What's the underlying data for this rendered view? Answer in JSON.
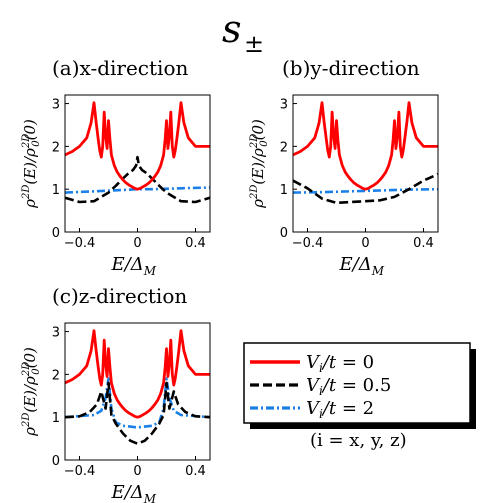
{
  "figure": {
    "title": "s±",
    "title_main": "s",
    "title_sub": "±"
  },
  "legend": {
    "entries": [
      {
        "label": "V_i/t = 0",
        "text": "Vi/t = 0",
        "color": "#ff0000",
        "dash": "solid"
      },
      {
        "label": "V_i/t = 0.5",
        "text": "Vi/t = 0.5",
        "color": "#000000",
        "dash": "dashed"
      },
      {
        "label": "V_i/t = 2",
        "text": "Vi/t = 2",
        "color": "#1a7fe6",
        "dash": "dashdot"
      }
    ],
    "note": "(i = x, y, z)"
  },
  "chart_data": [
    {
      "type": "line",
      "panel_label": "(a)x-direction",
      "xlabel": "E/Δ_M",
      "ylabel": "ρ^{2D}(E)/ρ_0^{2D}(0)",
      "xlim": [
        -0.5,
        0.5
      ],
      "ylim": [
        0,
        3.2
      ],
      "xticks": [
        "−0.4",
        "0",
        "0.4"
      ],
      "yticks": [
        "0",
        "1",
        "2",
        "3"
      ],
      "series": [
        {
          "name": "V_i/t = 0",
          "x": [
            -0.5,
            -0.45,
            -0.4,
            -0.35,
            -0.32,
            -0.3,
            -0.285,
            -0.27,
            -0.26,
            -0.25,
            -0.24,
            -0.23,
            -0.22,
            -0.21,
            -0.2,
            -0.19,
            -0.18,
            -0.16,
            -0.14,
            -0.12,
            -0.1,
            -0.08,
            -0.06,
            -0.04,
            -0.02,
            0,
            0.02,
            0.04,
            0.06,
            0.08,
            0.1,
            0.12,
            0.14,
            0.16,
            0.18,
            0.19,
            0.2,
            0.21,
            0.22,
            0.23,
            0.24,
            0.25,
            0.26,
            0.27,
            0.285,
            0.3,
            0.32,
            0.35,
            0.4,
            0.45,
            0.5
          ],
          "y": [
            1.8,
            1.88,
            2.0,
            2.2,
            2.55,
            3.02,
            2.55,
            2.15,
            1.9,
            1.75,
            2.0,
            2.8,
            2.25,
            1.95,
            2.6,
            2.15,
            1.8,
            1.55,
            1.4,
            1.3,
            1.22,
            1.15,
            1.1,
            1.06,
            1.02,
            1.0,
            1.02,
            1.06,
            1.1,
            1.15,
            1.22,
            1.3,
            1.4,
            1.55,
            1.8,
            2.15,
            2.6,
            1.95,
            2.25,
            2.8,
            2.0,
            1.75,
            1.9,
            2.15,
            2.55,
            3.02,
            2.55,
            2.2,
            2.0,
            2.0,
            2.0
          ]
        },
        {
          "name": "V_i/t = 0.5",
          "x": [
            -0.5,
            -0.4,
            -0.3,
            -0.2,
            -0.15,
            -0.1,
            -0.06,
            -0.03,
            -0.01,
            0,
            0.01,
            0.03,
            0.06,
            0.1,
            0.15,
            0.2,
            0.3,
            0.4,
            0.5
          ],
          "y": [
            0.8,
            0.7,
            0.72,
            0.92,
            1.08,
            1.25,
            1.38,
            1.45,
            1.55,
            1.75,
            1.55,
            1.45,
            1.38,
            1.25,
            1.08,
            0.92,
            0.72,
            0.7,
            0.8
          ]
        },
        {
          "name": "V_i/t = 2",
          "x": [
            -0.5,
            -0.3,
            -0.1,
            0,
            0.1,
            0.3,
            0.5
          ],
          "y": [
            0.92,
            0.95,
            0.98,
            1.0,
            1.0,
            1.02,
            1.04
          ]
        }
      ]
    },
    {
      "type": "line",
      "panel_label": "(b)y-direction",
      "xlabel": "E/Δ_M",
      "ylabel": "ρ^{2D}(E)/ρ_0^{2D}(0)",
      "xlim": [
        -0.5,
        0.5
      ],
      "ylim": [
        0,
        3.2
      ],
      "xticks": [
        "−0.4",
        "0",
        "0.4"
      ],
      "yticks": [
        "0",
        "1",
        "2",
        "3"
      ],
      "series": [
        {
          "name": "V_i/t = 0",
          "x": [
            -0.5,
            -0.45,
            -0.4,
            -0.35,
            -0.32,
            -0.3,
            -0.285,
            -0.27,
            -0.26,
            -0.25,
            -0.24,
            -0.23,
            -0.22,
            -0.21,
            -0.2,
            -0.19,
            -0.18,
            -0.16,
            -0.14,
            -0.12,
            -0.1,
            -0.08,
            -0.06,
            -0.04,
            -0.02,
            0,
            0.02,
            0.04,
            0.06,
            0.08,
            0.1,
            0.12,
            0.14,
            0.16,
            0.18,
            0.19,
            0.2,
            0.21,
            0.22,
            0.23,
            0.24,
            0.25,
            0.26,
            0.27,
            0.285,
            0.3,
            0.32,
            0.35,
            0.4,
            0.45,
            0.5
          ],
          "y": [
            1.8,
            1.88,
            2.0,
            2.2,
            2.55,
            3.02,
            2.55,
            2.15,
            1.9,
            1.75,
            2.0,
            2.8,
            2.25,
            1.95,
            2.6,
            2.15,
            1.8,
            1.55,
            1.4,
            1.3,
            1.22,
            1.15,
            1.1,
            1.06,
            1.02,
            1.0,
            1.02,
            1.06,
            1.1,
            1.15,
            1.22,
            1.3,
            1.4,
            1.55,
            1.8,
            2.15,
            2.6,
            1.95,
            2.25,
            2.8,
            2.0,
            1.75,
            1.9,
            2.15,
            2.55,
            3.02,
            2.55,
            2.2,
            2.0,
            2.0,
            2.0
          ]
        },
        {
          "name": "V_i/t = 0.5",
          "x": [
            -0.5,
            -0.4,
            -0.3,
            -0.2,
            -0.1,
            0,
            0.1,
            0.2,
            0.3,
            0.4,
            0.5
          ],
          "y": [
            1.2,
            1.02,
            0.78,
            0.68,
            0.7,
            0.72,
            0.74,
            0.82,
            1.0,
            1.2,
            1.35
          ]
        },
        {
          "name": "V_i/t = 2",
          "x": [
            -0.5,
            -0.3,
            -0.1,
            0,
            0.1,
            0.3,
            0.5
          ],
          "y": [
            0.92,
            0.93,
            0.95,
            0.96,
            0.97,
            0.99,
            1.0
          ]
        }
      ]
    },
    {
      "type": "line",
      "panel_label": "(c)z-direction",
      "xlabel": "E/Δ_M",
      "ylabel": "ρ^{2D}(E)/ρ_0^{2D}(0)",
      "xlim": [
        -0.5,
        0.5
      ],
      "ylim": [
        0,
        3.2
      ],
      "xticks": [
        "−0.4",
        "0",
        "0.4"
      ],
      "yticks": [
        "0",
        "1",
        "2",
        "3"
      ],
      "series": [
        {
          "name": "V_i/t = 0",
          "x": [
            -0.5,
            -0.45,
            -0.4,
            -0.35,
            -0.32,
            -0.3,
            -0.285,
            -0.27,
            -0.26,
            -0.25,
            -0.24,
            -0.23,
            -0.22,
            -0.21,
            -0.2,
            -0.19,
            -0.18,
            -0.16,
            -0.14,
            -0.12,
            -0.1,
            -0.08,
            -0.06,
            -0.04,
            -0.02,
            0,
            0.02,
            0.04,
            0.06,
            0.08,
            0.1,
            0.12,
            0.14,
            0.16,
            0.18,
            0.19,
            0.2,
            0.21,
            0.22,
            0.23,
            0.24,
            0.25,
            0.26,
            0.27,
            0.285,
            0.3,
            0.32,
            0.35,
            0.4,
            0.45,
            0.5
          ],
          "y": [
            1.8,
            1.88,
            2.0,
            2.2,
            2.55,
            3.02,
            2.55,
            2.15,
            1.9,
            1.75,
            2.0,
            2.8,
            2.25,
            1.95,
            2.6,
            2.15,
            1.8,
            1.55,
            1.4,
            1.3,
            1.22,
            1.15,
            1.1,
            1.06,
            1.02,
            1.0,
            1.02,
            1.06,
            1.1,
            1.15,
            1.22,
            1.3,
            1.4,
            1.55,
            1.8,
            2.15,
            2.6,
            1.95,
            2.25,
            2.8,
            2.0,
            1.75,
            1.9,
            2.15,
            2.55,
            3.02,
            2.55,
            2.2,
            2.0,
            2.0,
            2.0
          ]
        },
        {
          "name": "V_i/t = 0.5",
          "x": [
            -0.5,
            -0.4,
            -0.33,
            -0.28,
            -0.25,
            -0.22,
            -0.2,
            -0.18,
            -0.15,
            -0.1,
            -0.05,
            0,
            0.05,
            0.1,
            0.15,
            0.18,
            0.2,
            0.22,
            0.25,
            0.28,
            0.33,
            0.4,
            0.5
          ],
          "y": [
            1.0,
            1.02,
            1.12,
            1.3,
            1.6,
            1.2,
            1.8,
            1.05,
            0.85,
            0.62,
            0.45,
            0.38,
            0.45,
            0.62,
            0.85,
            1.05,
            1.8,
            1.2,
            1.6,
            1.3,
            1.12,
            1.02,
            1.0
          ]
        },
        {
          "name": "V_i/t = 2",
          "x": [
            -0.5,
            -0.3,
            -0.25,
            -0.22,
            -0.2,
            -0.18,
            -0.15,
            -0.1,
            -0.05,
            0,
            0.05,
            0.1,
            0.15,
            0.18,
            0.2,
            0.22,
            0.25,
            0.3,
            0.5
          ],
          "y": [
            1.0,
            1.05,
            1.15,
            1.45,
            1.9,
            1.2,
            0.88,
            0.8,
            0.78,
            0.76,
            0.78,
            0.8,
            0.88,
            1.2,
            1.9,
            1.45,
            1.15,
            1.05,
            1.0
          ]
        }
      ]
    }
  ]
}
